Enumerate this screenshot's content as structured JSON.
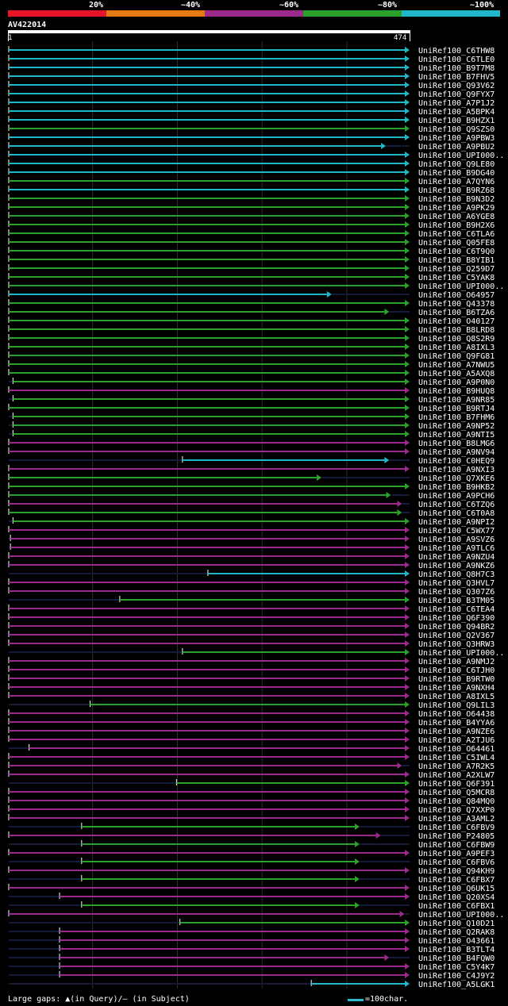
{
  "legend": {
    "labels": [
      "20%",
      "~40%",
      "~60%",
      "~80%",
      "~100%"
    ],
    "colors": [
      "#e8142b",
      "#e87a14",
      "#9b2a8c",
      "#2ba12b",
      "#20b8c8"
    ]
  },
  "query": {
    "name": "AV422014",
    "start": "1",
    "end": "474"
  },
  "footer": {
    "gaps_text": "Large gaps: ▲(in Query)/– (in Subject)",
    "scale_text": "=100char."
  },
  "chart_data": {
    "type": "alignment",
    "title": "AV422014",
    "query_length": 474,
    "hits": [
      {
        "id": "UniRef100_C6THW8",
        "start": 1,
        "end": 474,
        "identity": "100"
      },
      {
        "id": "UniRef100_C6TLE0",
        "start": 1,
        "end": 474,
        "identity": "100"
      },
      {
        "id": "UniRef100_B9T7M8",
        "start": 1,
        "end": 474,
        "identity": "100"
      },
      {
        "id": "UniRef100_B7FHV5",
        "start": 1,
        "end": 474,
        "identity": "100"
      },
      {
        "id": "UniRef100_Q93V62",
        "start": 1,
        "end": 474,
        "identity": "100"
      },
      {
        "id": "UniRef100_Q9FYX7",
        "start": 1,
        "end": 474,
        "identity": "100"
      },
      {
        "id": "UniRef100_A7P1J2",
        "start": 1,
        "end": 474,
        "identity": "100"
      },
      {
        "id": "UniRef100_A5BPK4",
        "start": 1,
        "end": 474,
        "identity": "100"
      },
      {
        "id": "UniRef100_B9HZX1",
        "start": 1,
        "end": 474,
        "identity": "100"
      },
      {
        "id": "UniRef100_Q9SZS0",
        "start": 1,
        "end": 474,
        "identity": "80"
      },
      {
        "id": "UniRef100_A9PBW3",
        "start": 1,
        "end": 474,
        "identity": "100"
      },
      {
        "id": "UniRef100_A9PBU2",
        "start": 1,
        "end": 446,
        "identity": "100"
      },
      {
        "id": "UniRef100_UPI000..",
        "start": 1,
        "end": 474,
        "identity": "100"
      },
      {
        "id": "UniRef100_Q9LE80",
        "start": 1,
        "end": 474,
        "identity": "100"
      },
      {
        "id": "UniRef100_B9DG40",
        "start": 1,
        "end": 474,
        "identity": "100"
      },
      {
        "id": "UniRef100_A7QYN6",
        "start": 1,
        "end": 474,
        "identity": "80"
      },
      {
        "id": "UniRef100_B9RZ68",
        "start": 1,
        "end": 474,
        "identity": "100"
      },
      {
        "id": "UniRef100_B9N3D2",
        "start": 1,
        "end": 474,
        "identity": "80"
      },
      {
        "id": "UniRef100_A9PK29",
        "start": 1,
        "end": 474,
        "identity": "80"
      },
      {
        "id": "UniRef100_A6YGE8",
        "start": 1,
        "end": 474,
        "identity": "80"
      },
      {
        "id": "UniRef100_B9H2X6",
        "start": 1,
        "end": 474,
        "identity": "80"
      },
      {
        "id": "UniRef100_C6TLA6",
        "start": 1,
        "end": 474,
        "identity": "80"
      },
      {
        "id": "UniRef100_Q05FE8",
        "start": 1,
        "end": 474,
        "identity": "80"
      },
      {
        "id": "UniRef100_C6T9Q0",
        "start": 1,
        "end": 474,
        "identity": "80"
      },
      {
        "id": "UniRef100_B8YIB1",
        "start": 1,
        "end": 474,
        "identity": "80"
      },
      {
        "id": "UniRef100_Q259D7",
        "start": 1,
        "end": 474,
        "identity": "80"
      },
      {
        "id": "UniRef100_C5YAK8",
        "start": 1,
        "end": 474,
        "identity": "80"
      },
      {
        "id": "UniRef100_UPI000..",
        "start": 1,
        "end": 474,
        "identity": "80"
      },
      {
        "id": "UniRef100_O64957",
        "start": 1,
        "end": 382,
        "identity": "100"
      },
      {
        "id": "UniRef100_Q43378",
        "start": 1,
        "end": 474,
        "identity": "80"
      },
      {
        "id": "UniRef100_B6TZA6",
        "start": 1,
        "end": 450,
        "identity": "80"
      },
      {
        "id": "UniRef100_O40127",
        "start": 1,
        "end": 474,
        "identity": "80"
      },
      {
        "id": "UniRef100_B8LRD8",
        "start": 1,
        "end": 474,
        "identity": "80"
      },
      {
        "id": "UniRef100_Q8S2R9",
        "start": 1,
        "end": 474,
        "identity": "80"
      },
      {
        "id": "UniRef100_A8IXL3",
        "start": 1,
        "end": 474,
        "identity": "80"
      },
      {
        "id": "UniRef100_Q9FG81",
        "start": 1,
        "end": 474,
        "identity": "80"
      },
      {
        "id": "UniRef100_A7NWU5",
        "start": 1,
        "end": 474,
        "identity": "80"
      },
      {
        "id": "UniRef100_A5AXQ8",
        "start": 1,
        "end": 474,
        "identity": "80"
      },
      {
        "id": "UniRef100_A9P0N0",
        "start": 6,
        "end": 474,
        "identity": "80"
      },
      {
        "id": "UniRef100_B9HUQ8",
        "start": 1,
        "end": 474,
        "identity": "60"
      },
      {
        "id": "UniRef100_A9NR85",
        "start": 6,
        "end": 474,
        "identity": "80"
      },
      {
        "id": "UniRef100_B9RTJ4",
        "start": 1,
        "end": 474,
        "identity": "80"
      },
      {
        "id": "UniRef100_B7FHM6",
        "start": 6,
        "end": 474,
        "identity": "80"
      },
      {
        "id": "UniRef100_A9NP52",
        "start": 6,
        "end": 474,
        "identity": "80"
      },
      {
        "id": "UniRef100_A9NTI5",
        "start": 6,
        "end": 474,
        "identity": "80"
      },
      {
        "id": "UniRef100_B8LMG6",
        "start": 1,
        "end": 474,
        "identity": "60"
      },
      {
        "id": "UniRef100_A9NV94",
        "start": 1,
        "end": 474,
        "identity": "60"
      },
      {
        "id": "UniRef100_C0HEQ9",
        "start": 206,
        "end": 450,
        "identity": "100"
      },
      {
        "id": "UniRef100_A9NXI3",
        "start": 1,
        "end": 474,
        "identity": "60"
      },
      {
        "id": "UniRef100_Q7XKE6",
        "start": 1,
        "end": 370,
        "identity": "80"
      },
      {
        "id": "UniRef100_B9HKB2",
        "start": 1,
        "end": 474,
        "identity": "80"
      },
      {
        "id": "UniRef100_A9PCH6",
        "start": 1,
        "end": 452,
        "identity": "80"
      },
      {
        "id": "UniRef100_C6TZQ6",
        "start": 1,
        "end": 465,
        "identity": "60"
      },
      {
        "id": "UniRef100_C6T0A8",
        "start": 1,
        "end": 465,
        "identity": "80"
      },
      {
        "id": "UniRef100_A9NPI2",
        "start": 6,
        "end": 474,
        "identity": "80"
      },
      {
        "id": "UniRef100_C5WX77",
        "start": 1,
        "end": 474,
        "identity": "60"
      },
      {
        "id": "UniRef100_A9SVZ6",
        "start": 3,
        "end": 474,
        "identity": "60"
      },
      {
        "id": "UniRef100_A9TLC6",
        "start": 3,
        "end": 474,
        "identity": "60"
      },
      {
        "id": "UniRef100_A9NZU4",
        "start": 1,
        "end": 474,
        "identity": "60"
      },
      {
        "id": "UniRef100_A9NKZ6",
        "start": 1,
        "end": 474,
        "identity": "60"
      },
      {
        "id": "UniRef100_Q8H7C3",
        "start": 236,
        "end": 474,
        "identity": "100"
      },
      {
        "id": "UniRef100_Q3HVL7",
        "start": 1,
        "end": 474,
        "identity": "60"
      },
      {
        "id": "UniRef100_Q307Z6",
        "start": 1,
        "end": 474,
        "identity": "60"
      },
      {
        "id": "UniRef100_B3TM05",
        "start": 132,
        "end": 474,
        "identity": "80"
      },
      {
        "id": "UniRef100_C6TEA4",
        "start": 1,
        "end": 474,
        "identity": "60"
      },
      {
        "id": "UniRef100_Q6F390",
        "start": 1,
        "end": 474,
        "identity": "60"
      },
      {
        "id": "UniRef100_Q94BR2",
        "start": 1,
        "end": 474,
        "identity": "60"
      },
      {
        "id": "UniRef100_Q2V367",
        "start": 1,
        "end": 474,
        "identity": "60"
      },
      {
        "id": "UniRef100_Q3HRW3",
        "start": 1,
        "end": 474,
        "identity": "60"
      },
      {
        "id": "UniRef100_UPI000..",
        "start": 206,
        "end": 474,
        "identity": "80"
      },
      {
        "id": "UniRef100_A9NMJ2",
        "start": 1,
        "end": 474,
        "identity": "60"
      },
      {
        "id": "UniRef100_C6TJH0",
        "start": 1,
        "end": 474,
        "identity": "60"
      },
      {
        "id": "UniRef100_B9RTW0",
        "start": 1,
        "end": 474,
        "identity": "60"
      },
      {
        "id": "UniRef100_A9NXH4",
        "start": 1,
        "end": 474,
        "identity": "60"
      },
      {
        "id": "UniRef100_A8IXL5",
        "start": 1,
        "end": 474,
        "identity": "60"
      },
      {
        "id": "UniRef100_Q9LIL3",
        "start": 97,
        "end": 474,
        "identity": "80"
      },
      {
        "id": "UniRef100_O64438",
        "start": 1,
        "end": 474,
        "identity": "60"
      },
      {
        "id": "UniRef100_B4YYA6",
        "start": 1,
        "end": 474,
        "identity": "60"
      },
      {
        "id": "UniRef100_A9NZE6",
        "start": 1,
        "end": 474,
        "identity": "60"
      },
      {
        "id": "UniRef100_A2TJU6",
        "start": 1,
        "end": 474,
        "identity": "60"
      },
      {
        "id": "UniRef100_O64461",
        "start": 25,
        "end": 474,
        "identity": "60"
      },
      {
        "id": "UniRef100_C5IWL4",
        "start": 1,
        "end": 474,
        "identity": "60"
      },
      {
        "id": "UniRef100_A7R2K5",
        "start": 1,
        "end": 465,
        "identity": "60"
      },
      {
        "id": "UniRef100_A2XLW7",
        "start": 1,
        "end": 474,
        "identity": "60"
      },
      {
        "id": "UniRef100_Q6F391",
        "start": 199,
        "end": 474,
        "identity": "80"
      },
      {
        "id": "UniRef100_Q5MCR8",
        "start": 1,
        "end": 474,
        "identity": "60"
      },
      {
        "id": "UniRef100_Q84MQ0",
        "start": 1,
        "end": 474,
        "identity": "60"
      },
      {
        "id": "UniRef100_Q7XXP0",
        "start": 1,
        "end": 474,
        "identity": "60"
      },
      {
        "id": "UniRef100_A3AML2",
        "start": 1,
        "end": 474,
        "identity": "60"
      },
      {
        "id": "UniRef100_C6FBV9",
        "start": 87,
        "end": 415,
        "identity": "80"
      },
      {
        "id": "UniRef100_P24805",
        "start": 1,
        "end": 440,
        "identity": "60"
      },
      {
        "id": "UniRef100_C6FBW9",
        "start": 87,
        "end": 415,
        "identity": "80"
      },
      {
        "id": "UniRef100_A9PEF3",
        "start": 1,
        "end": 474,
        "identity": "60"
      },
      {
        "id": "UniRef100_C6FBV6",
        "start": 87,
        "end": 415,
        "identity": "80"
      },
      {
        "id": "UniRef100_Q94KH9",
        "start": 1,
        "end": 474,
        "identity": "60"
      },
      {
        "id": "UniRef100_C6FBX7",
        "start": 87,
        "end": 415,
        "identity": "80"
      },
      {
        "id": "UniRef100_Q6UK15",
        "start": 1,
        "end": 474,
        "identity": "60"
      },
      {
        "id": "UniRef100_Q20XS4",
        "start": 61,
        "end": 474,
        "identity": "60"
      },
      {
        "id": "UniRef100_C6FBX1",
        "start": 87,
        "end": 415,
        "identity": "80"
      },
      {
        "id": "UniRef100_UPI000..",
        "start": 1,
        "end": 468,
        "identity": "60"
      },
      {
        "id": "UniRef100_Q10D21",
        "start": 203,
        "end": 474,
        "identity": "80"
      },
      {
        "id": "UniRef100_Q2RAK8",
        "start": 61,
        "end": 474,
        "identity": "60"
      },
      {
        "id": "UniRef100_O43661",
        "start": 61,
        "end": 474,
        "identity": "60"
      },
      {
        "id": "UniRef100_B3TLT4",
        "start": 61,
        "end": 474,
        "identity": "60"
      },
      {
        "id": "UniRef100_B4FQW0",
        "start": 61,
        "end": 450,
        "identity": "60"
      },
      {
        "id": "UniRef100_C5Y4K7",
        "start": 61,
        "end": 474,
        "identity": "60"
      },
      {
        "id": "UniRef100_C4J9Y2",
        "start": 61,
        "end": 474,
        "identity": "60"
      },
      {
        "id": "UniRef100_A5LGK1",
        "start": 358,
        "end": 474,
        "identity": "100"
      }
    ]
  }
}
